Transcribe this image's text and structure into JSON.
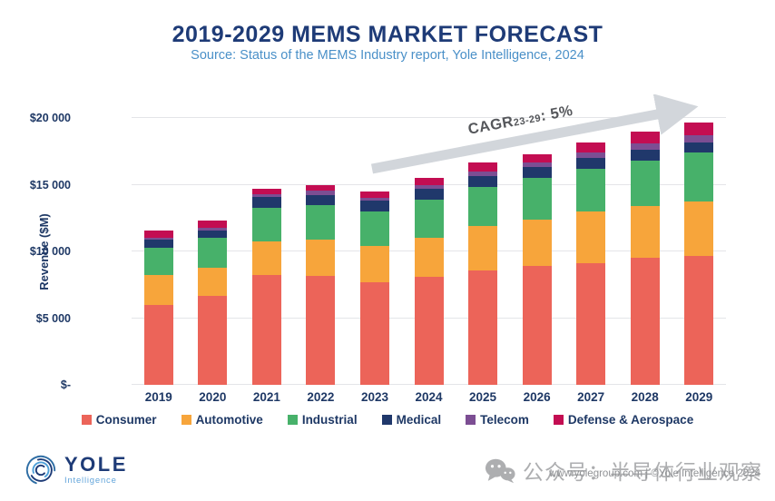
{
  "header": {
    "title": "2019-2029 MEMS MARKET FORECAST",
    "subtitle": "Source: Status of the MEMS Industry report, Yole Intelligence, 2024"
  },
  "colors": {
    "title": "#1E3B77",
    "subtitle": "#4A90C8",
    "axis_text": "#1E3865",
    "gridline": "#E4E5E8",
    "arrow": "#D2D6DB",
    "annotation": "#55575B"
  },
  "chart_data": {
    "type": "bar",
    "stacked": true,
    "title": "2019-2029 MEMS MARKET FORECAST",
    "xlabel": "",
    "ylabel": "Revenue ($M)",
    "ylim": [
      0,
      20000
    ],
    "yticks": [
      0,
      5000,
      10000,
      15000,
      20000
    ],
    "ytick_labels": [
      "$-",
      "$5 000",
      "$10 000",
      "$15 000",
      "$20 000"
    ],
    "grid": true,
    "legend_position": "bottom",
    "categories": [
      "2019",
      "2020",
      "2021",
      "2022",
      "2023",
      "2024",
      "2025",
      "2026",
      "2027",
      "2028",
      "2029"
    ],
    "series": [
      {
        "name": "Consumer",
        "color": "#EC6459",
        "values": [
          6000,
          6700,
          8250,
          8150,
          7700,
          8100,
          8600,
          8900,
          9100,
          9500,
          9650
        ]
      },
      {
        "name": "Automotive",
        "color": "#F7A53B",
        "values": [
          2200,
          2100,
          2500,
          2750,
          2700,
          2900,
          3300,
          3500,
          3900,
          3900,
          4100
        ]
      },
      {
        "name": "Industrial",
        "color": "#47B16A",
        "values": [
          2100,
          2200,
          2550,
          2550,
          2600,
          2850,
          2900,
          3100,
          3200,
          3400,
          3650
        ]
      },
      {
        "name": "Medical",
        "color": "#20386B",
        "values": [
          600,
          600,
          800,
          800,
          800,
          850,
          850,
          800,
          800,
          850,
          800
        ]
      },
      {
        "name": "Telecom",
        "color": "#7C4E93",
        "values": [
          150,
          150,
          200,
          300,
          200,
          300,
          350,
          350,
          400,
          450,
          500
        ]
      },
      {
        "name": "Defense & Aerospace",
        "color": "#C30D52",
        "values": [
          550,
          600,
          400,
          450,
          500,
          500,
          700,
          650,
          800,
          900,
          950
        ]
      }
    ],
    "totals": [
      11600,
      12350,
      14700,
      15000,
      14500,
      15500,
      16700,
      17300,
      18200,
      19000,
      19650
    ],
    "annotation": {
      "prefix": "CAGR",
      "sub": "23-29",
      "suffix": ": 5%"
    }
  },
  "footer": {
    "logo_name": "YOLE",
    "logo_sub": "Intelligence",
    "watermark_cn": "公众号：半导体行业观察",
    "watermark_small": "www.yolegroup.com | ©Yole Intelligence 2024"
  }
}
